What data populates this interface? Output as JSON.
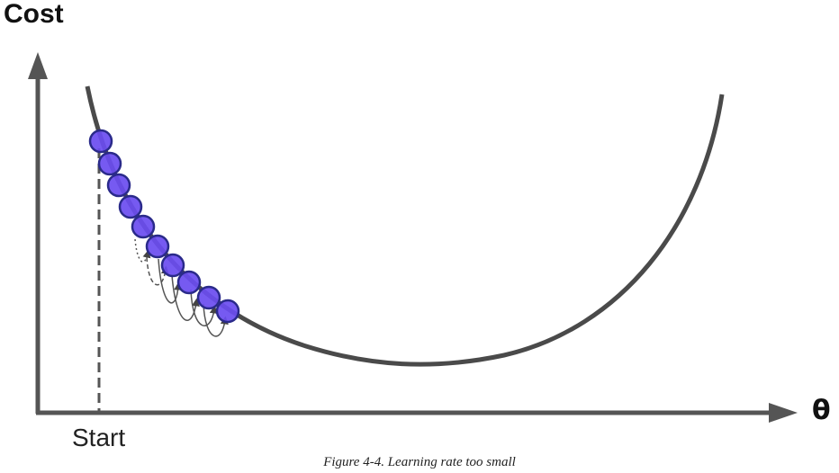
{
  "labels": {
    "y_axis": "Cost",
    "x_axis": "θ",
    "start": "Start"
  },
  "caption": "Figure 4-4. Learning rate too small",
  "colors": {
    "axis": "#555555",
    "curve": "#4a4a4a",
    "step_fill": "#6a4cf0",
    "step_stroke": "#2a2a8a",
    "arrow": "#555555"
  },
  "steps": {
    "count": 10,
    "arrows": 6
  }
}
